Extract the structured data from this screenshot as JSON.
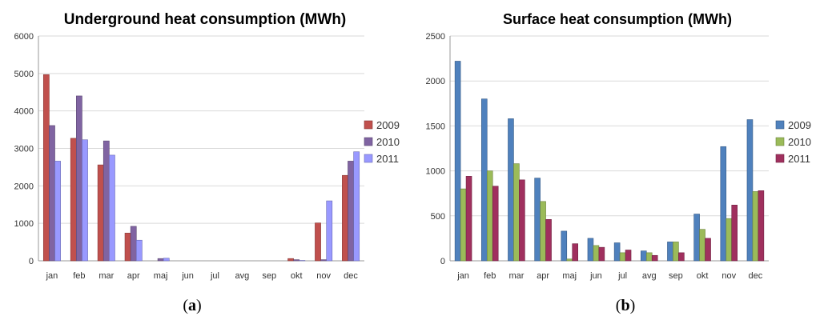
{
  "chart_data": [
    {
      "type": "bar",
      "title": "Underground heat consumption (MWh)",
      "caption": "a",
      "categories": [
        "jan",
        "feb",
        "mar",
        "apr",
        "maj",
        "jun",
        "jul",
        "avg",
        "sep",
        "okt",
        "nov",
        "dec"
      ],
      "ylim": [
        0,
        6000
      ],
      "yticks": [
        0,
        1000,
        2000,
        3000,
        4000,
        5000,
        6000
      ],
      "legend_position": "right",
      "series": [
        {
          "name": "2009",
          "color": "#c0504d",
          "values": [
            4970,
            3270,
            2560,
            740,
            0,
            0,
            0,
            0,
            0,
            60,
            1010,
            2280
          ]
        },
        {
          "name": "2010",
          "color": "#8064a2",
          "values": [
            3610,
            4400,
            3200,
            920,
            60,
            0,
            0,
            0,
            0,
            30,
            30,
            2660
          ]
        },
        {
          "name": "2011",
          "color": "#9999ff",
          "values": [
            2660,
            3230,
            2820,
            550,
            70,
            0,
            0,
            0,
            0,
            10,
            1600,
            2910
          ]
        }
      ]
    },
    {
      "type": "bar",
      "title": "Surface heat consumption (MWh)",
      "caption": "b",
      "categories": [
        "jan",
        "feb",
        "mar",
        "apr",
        "maj",
        "jun",
        "jul",
        "avg",
        "sep",
        "okt",
        "nov",
        "dec"
      ],
      "ylim": [
        0,
        2500
      ],
      "yticks": [
        0,
        500,
        1000,
        1500,
        2000,
        2500
      ],
      "legend_position": "right",
      "series": [
        {
          "name": "2009",
          "color": "#4f81bd",
          "values": [
            2220,
            1800,
            1580,
            920,
            330,
            250,
            200,
            110,
            210,
            520,
            1270,
            1570
          ]
        },
        {
          "name": "2010",
          "color": "#9bbb59",
          "values": [
            800,
            1000,
            1080,
            660,
            20,
            170,
            90,
            90,
            210,
            350,
            470,
            770
          ]
        },
        {
          "name": "2011",
          "color": "#a0305e",
          "values": [
            940,
            830,
            900,
            460,
            190,
            150,
            120,
            60,
            90,
            250,
            620,
            780
          ]
        }
      ]
    }
  ]
}
